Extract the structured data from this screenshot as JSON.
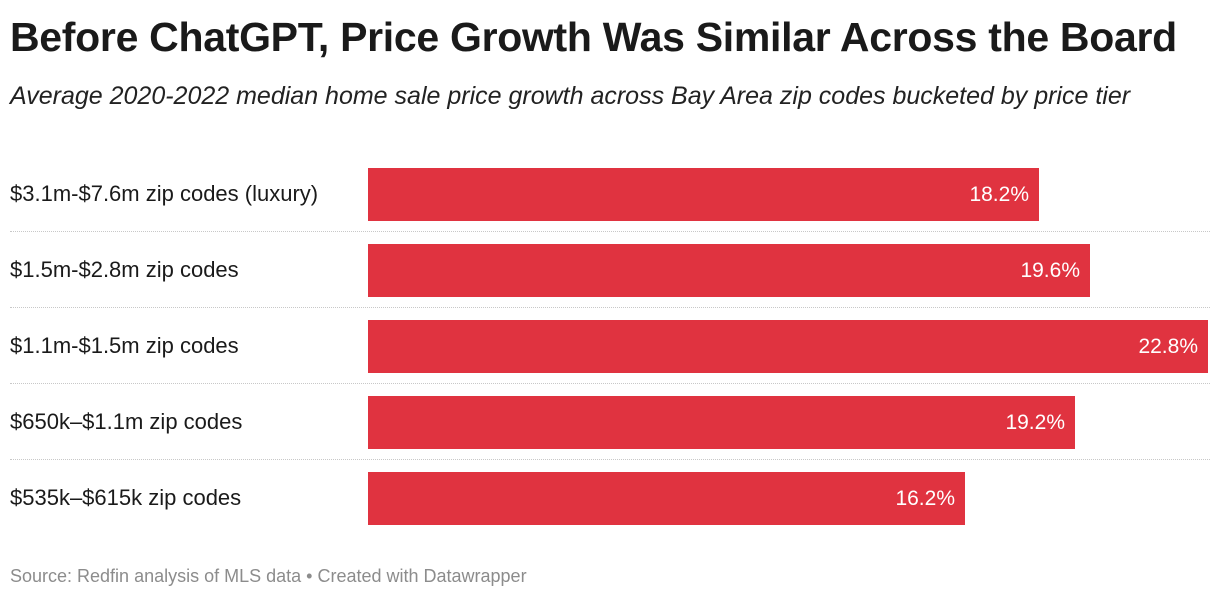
{
  "title": "Before ChatGPT, Price Growth Was Similar Across the Board",
  "subtitle": "Average 2020-2022 median home sale price growth across Bay Area zip codes bucketed by price tier",
  "source": "Source: Redfin analysis of MLS data • Created with Datawrapper",
  "colors": {
    "bar": "#e03340",
    "bar_label": "#ffffff",
    "source": "#8c8c8c"
  },
  "chart_data": {
    "type": "bar",
    "orientation": "horizontal",
    "title": "Before ChatGPT, Price Growth Was Similar Across the Board",
    "subtitle": "Average 2020-2022 median home sale price growth across Bay Area zip codes bucketed by price tier",
    "xlabel": "",
    "ylabel": "",
    "xlim": [
      0,
      22.8
    ],
    "grid": false,
    "categories": [
      "$3.1m-$7.6m zip codes (luxury)",
      "$1.5m-$2.8m zip codes",
      "$1.1m-$1.5m zip codes",
      "$650k–$1.1m zip codes",
      "$535k–$615k zip codes"
    ],
    "values": [
      18.2,
      19.6,
      22.8,
      19.2,
      16.2
    ],
    "value_labels": [
      "18.2%",
      "19.6%",
      "22.8%",
      "19.2%",
      "16.2%"
    ]
  }
}
